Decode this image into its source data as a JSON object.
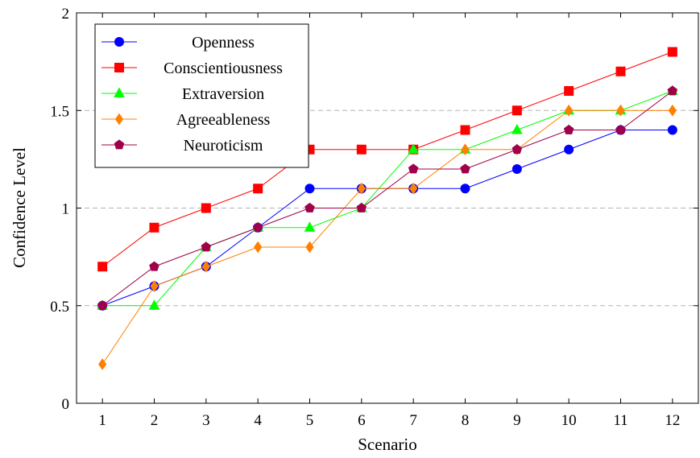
{
  "chart_data": {
    "type": "line",
    "title": "",
    "xlabel": "Scenario",
    "ylabel": "Confidence Level",
    "x": [
      1,
      2,
      3,
      4,
      5,
      6,
      7,
      8,
      9,
      10,
      11,
      12
    ],
    "xlim": [
      0.5,
      12.5
    ],
    "ylim": [
      0,
      2
    ],
    "yticks": [
      0,
      0.5,
      1,
      1.5,
      2
    ],
    "ytick_labels": [
      "0",
      "0.5",
      "1",
      "1.5",
      "2"
    ],
    "grid": "horizontal dashed at 0.5, 1 and 1.5",
    "legend_position": "top-left",
    "series": [
      {
        "name": "Openness",
        "color": "#0000ff",
        "marker": "circle",
        "values": [
          0.5,
          0.6,
          0.7,
          0.9,
          1.1,
          1.1,
          1.1,
          1.1,
          1.2,
          1.3,
          1.4,
          1.4
        ]
      },
      {
        "name": "Conscientiousness",
        "color": "#ff0000",
        "marker": "square",
        "values": [
          0.7,
          0.9,
          1.0,
          1.1,
          1.3,
          1.3,
          1.3,
          1.4,
          1.5,
          1.6,
          1.7,
          1.8
        ]
      },
      {
        "name": "Extraversion",
        "color": "#00ff00",
        "marker": "triangle",
        "values": [
          0.5,
          0.5,
          0.8,
          0.9,
          0.9,
          1.0,
          1.3,
          1.3,
          1.4,
          1.5,
          1.5,
          1.6
        ]
      },
      {
        "name": "Agreeableness",
        "color": "#ff8000",
        "marker": "diamond",
        "values": [
          0.2,
          0.6,
          0.7,
          0.8,
          0.8,
          1.1,
          1.1,
          1.3,
          1.3,
          1.5,
          1.5,
          1.5
        ]
      },
      {
        "name": "Neuroticism",
        "color": "#a0004a",
        "marker": "pentagon",
        "values": [
          0.5,
          0.7,
          0.8,
          0.9,
          1.0,
          1.0,
          1.2,
          1.2,
          1.3,
          1.4,
          1.4,
          1.6
        ]
      }
    ]
  }
}
